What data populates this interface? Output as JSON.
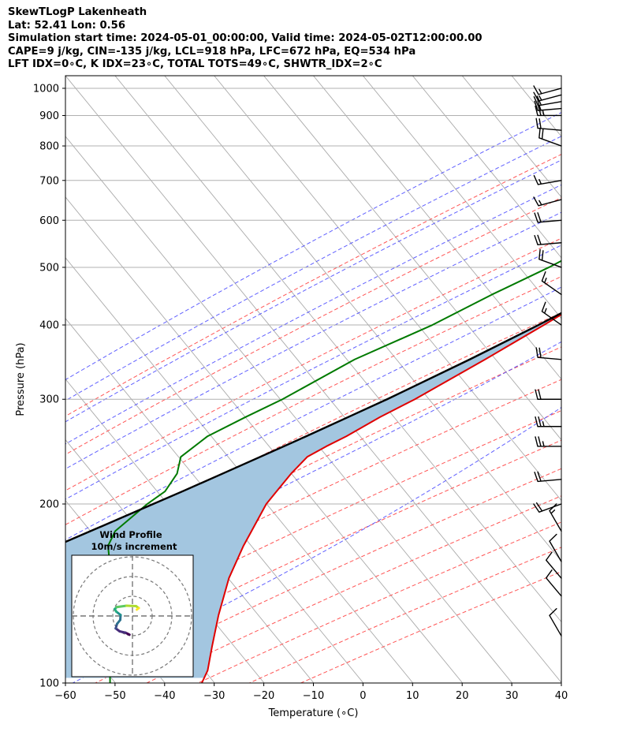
{
  "title_lines": [
    "SkewTLogP Lakenheath",
    "Lat: 52.41   Lon: 0.56",
    "Simulation start time: 2024-05-01_00:00:00, Valid time: 2024-05-02T12:00:00.00",
    "CAPE=9 j/kg, CIN=-135 j/kg, LCL=918 hPa, LFC=672 hPa, EQ=534 hPa",
    "LFT IDX=0∘C, K IDX=23∘C, TOTAL TOTS=49∘C, SHWTR_IDX=2∘C"
  ],
  "colors": {
    "temperature": "#e00000",
    "dewpoint": "#007a00",
    "parcel": "#000000",
    "cape_fill": "#a3c6e0",
    "dry_adiabat": "#ff5555",
    "moist_adiabat": "#4444ff",
    "mixing_ratio": "#8833bb",
    "isotherm": "#aaaaaa"
  },
  "chart_data": {
    "type": "line",
    "title": "",
    "xlabel": "Temperature (∘C)",
    "ylabel": "Pressure (hPa)",
    "xlim": [
      -60,
      40
    ],
    "ylim": [
      1050,
      100
    ],
    "yscale": "log",
    "skew": "skewed isotherms",
    "grid": true,
    "xticks": [
      "−60",
      "−50",
      "−40",
      "−30",
      "−20",
      "−10",
      "0",
      "10",
      "20",
      "30",
      "40"
    ],
    "yticks": [
      "100",
      "200",
      "300",
      "400",
      "500",
      "600",
      "700",
      "800",
      "900",
      "1000"
    ],
    "series": [
      {
        "name": "",
        "role": "temperature",
        "p": [
          1000,
          975,
          950,
          925,
          900,
          850,
          800,
          750,
          700,
          650,
          600,
          550,
          500,
          450,
          400,
          350,
          300,
          280,
          260,
          250,
          240,
          225,
          210,
          200,
          180,
          170,
          150,
          130,
          115,
          105,
          100
        ],
        "t": [
          19.5,
          18.2,
          16.8,
          16.5,
          16.2,
          14.8,
          11.6,
          8.2,
          4.6,
          0.6,
          -3.5,
          -7.8,
          -12.4,
          -17.3,
          -22.5,
          -28.7,
          -36.3,
          -40.4,
          -44.0,
          -46.4,
          -48.5,
          -49.0,
          -49.0,
          -49.0,
          -47.5,
          -46.7,
          -44.3,
          -40.3,
          -36.4,
          -33.4,
          -32.5
        ]
      },
      {
        "name": "",
        "role": "dewpoint",
        "p": [
          1000,
          975,
          950,
          925,
          900,
          850,
          825,
          800,
          750,
          700,
          650,
          600,
          550,
          500,
          450,
          400,
          350,
          300,
          280,
          260,
          240,
          225,
          210,
          200,
          180,
          170,
          150,
          130,
          115,
          100
        ],
        "t": [
          14.5,
          14.8,
          13.0,
          14.0,
          12.5,
          5.0,
          0.0,
          -1.5,
          -1.5,
          -4.0,
          -13.0,
          -21.0,
          -25.5,
          -31.0,
          -38.0,
          -45.0,
          -55.0,
          -63.0,
          -67.5,
          -72.0,
          -74.0,
          -72.0,
          -71.5,
          -73.0,
          -75.0,
          -74.0,
          -68.0,
          -62.0,
          -57.0,
          -51.0
        ]
      },
      {
        "name": "",
        "role": "parcel",
        "p": [
          1000,
          975,
          950,
          925,
          918,
          900,
          850,
          800,
          750,
          700,
          672,
          650,
          600,
          550,
          534,
          500,
          450,
          400,
          350,
          300,
          280,
          260,
          240,
          225,
          210,
          200,
          180,
          170,
          150,
          130,
          115,
          105,
          100
        ],
        "t": [
          19.5,
          17.5,
          15.3,
          13.2,
          12.6,
          11.9,
          10.2,
          8.3,
          6.3,
          4.1,
          2.7,
          1.2,
          -2.5,
          -6.5,
          -8.0,
          -11.2,
          -16.8,
          -23.6,
          -31.8,
          -41.9,
          -46.8,
          -52.1,
          -58.0,
          -62.8,
          -68.0,
          -71.8,
          -80.0,
          -84.5,
          -95.0,
          -107.0,
          -117.0,
          -125.0,
          -129.0
        ]
      }
    ],
    "wind_barbs": {
      "p": [
        1000,
        975,
        950,
        925,
        900,
        850,
        800,
        700,
        650,
        600,
        550,
        500,
        450,
        400,
        350,
        300,
        270,
        250,
        220,
        200,
        180,
        160,
        150,
        140,
        120
      ],
      "speed_kt": [
        14,
        17,
        19,
        22,
        25,
        22,
        18,
        17,
        17,
        19,
        20,
        18,
        16,
        16,
        21,
        22,
        23,
        23,
        21,
        19,
        15,
        11,
        10,
        10,
        8
      ],
      "dir_deg": [
        255,
        255,
        260,
        265,
        270,
        275,
        290,
        260,
        255,
        265,
        265,
        290,
        305,
        305,
        275,
        270,
        270,
        270,
        265,
        250,
        330,
        330,
        320,
        320,
        330
      ]
    },
    "hodograph": {
      "title": "Wind Profile",
      "subtitle": "10m/s increment",
      "rings_ms": [
        10,
        20,
        30
      ],
      "u": [
        -1.5,
        -3.5,
        -6.5,
        -8.5,
        -7.8,
        -6.2,
        -6.0,
        -8.2,
        -9.0,
        -8.0,
        -3.0,
        1.8,
        3.2,
        2.2
      ],
      "v": [
        -9.5,
        -8.5,
        -7.8,
        -6.3,
        -4.0,
        -2.0,
        0.5,
        2.2,
        3.5,
        4.5,
        5.2,
        5.0,
        4.0,
        3.2
      ]
    }
  }
}
